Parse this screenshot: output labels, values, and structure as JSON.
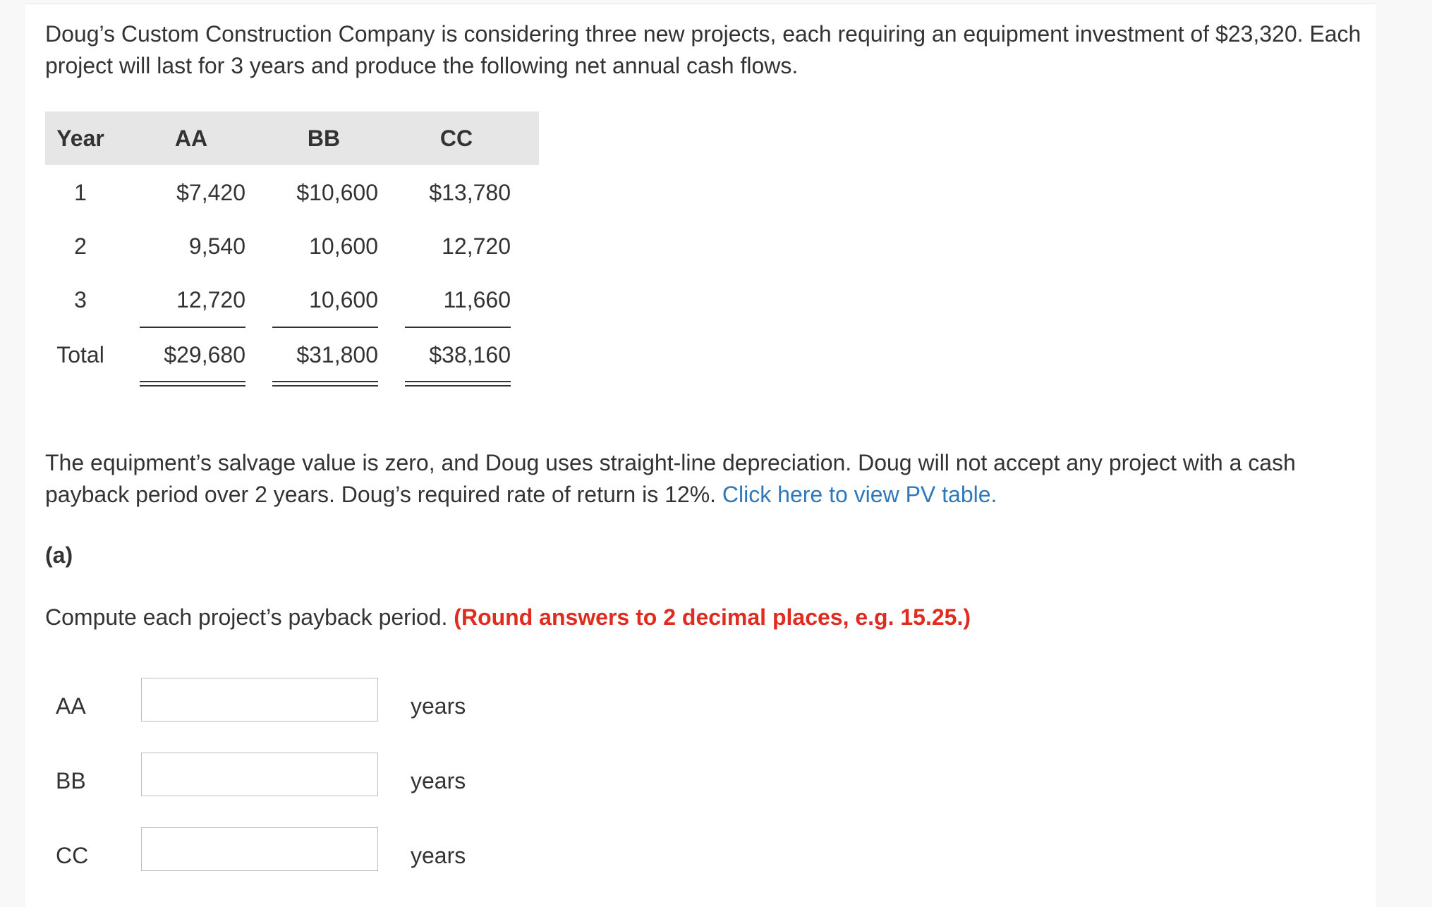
{
  "intro": "Doug’s Custom Construction Company is considering three new projects, each requiring an equipment investment of $23,320. Each project will last for 3 years and produce the following net annual cash flows.",
  "table": {
    "headers": [
      "Year",
      "AA",
      "BB",
      "CC"
    ],
    "rows": [
      [
        "1",
        "$7,420",
        "$10,600",
        "$13,780"
      ],
      [
        "2",
        "9,540",
        "10,600",
        "12,720"
      ],
      [
        "3",
        "12,720",
        "10,600",
        "11,660"
      ]
    ],
    "total": [
      "Total",
      "$29,680",
      "$31,800",
      "$38,160"
    ]
  },
  "salvage_text": "The equipment’s salvage value is zero, and Doug uses straight-line depreciation. Doug will not accept any project with a cash payback period over 2 years. Doug’s required rate of return is 12%.",
  "pv_link": "Click here to view PV table.",
  "part_label": "(a)",
  "instruction": "Compute each project’s payback period.",
  "instruction_note": "(Round answers to 2 decimal places, e.g. 15.25.)",
  "answers": [
    {
      "label": "AA",
      "value": "",
      "unit": "years"
    },
    {
      "label": "BB",
      "value": "",
      "unit": "years"
    },
    {
      "label": "CC",
      "value": "",
      "unit": "years"
    }
  ]
}
